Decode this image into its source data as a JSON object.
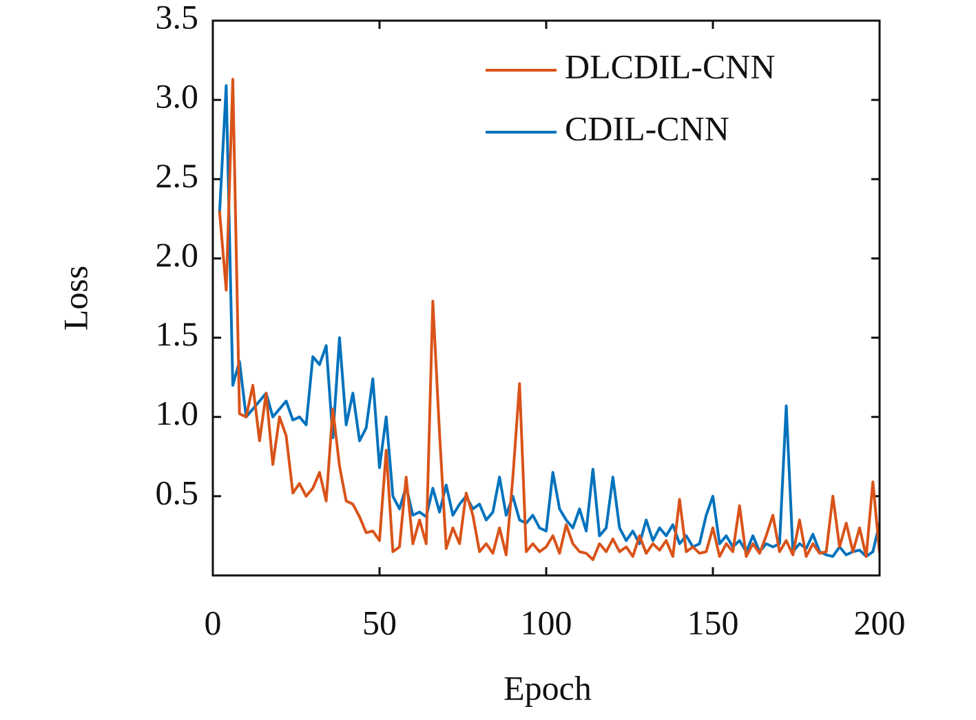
{
  "chart_data": {
    "type": "line",
    "x_label": "Epoch",
    "y_label": "Loss",
    "xlim": [
      0,
      200
    ],
    "xticks": [
      0,
      50,
      100,
      150,
      200
    ],
    "ylim": [
      0,
      3.5
    ],
    "yticks": [
      0.5,
      {
        "value": 1,
        "label": "1.0"
      },
      1.5,
      {
        "value": 2,
        "label": "2.0"
      },
      2.5,
      {
        "value": 3,
        "label": "3.0"
      },
      3.5
    ],
    "legend": "upper right",
    "x": [
      2,
      4,
      6,
      8,
      10,
      12,
      14,
      16,
      18,
      20,
      22,
      24,
      26,
      28,
      30,
      32,
      34,
      36,
      38,
      40,
      42,
      44,
      46,
      48,
      50,
      52,
      54,
      56,
      58,
      60,
      62,
      64,
      66,
      68,
      70,
      72,
      74,
      76,
      78,
      80,
      82,
      84,
      86,
      88,
      90,
      92,
      94,
      96,
      98,
      100,
      102,
      104,
      106,
      108,
      110,
      112,
      114,
      116,
      118,
      120,
      122,
      124,
      126,
      128,
      130,
      132,
      134,
      136,
      138,
      140,
      142,
      144,
      146,
      148,
      150,
      152,
      154,
      156,
      158,
      160,
      162,
      164,
      166,
      168,
      170,
      172,
      174,
      176,
      178,
      180,
      182,
      184,
      186,
      188,
      190,
      192,
      194,
      196,
      198,
      200
    ],
    "series": [
      {
        "name": "DLCDIL-CNN",
        "color": "#d95319",
        "values": [
          2.3,
          1.8,
          3.13,
          1.02,
          1.0,
          1.2,
          0.85,
          1.15,
          0.7,
          1.0,
          0.88,
          0.52,
          0.58,
          0.5,
          0.55,
          0.65,
          0.47,
          1.05,
          0.69,
          0.47,
          0.45,
          0.37,
          0.27,
          0.28,
          0.22,
          0.79,
          0.15,
          0.18,
          0.62,
          0.2,
          0.35,
          0.2,
          1.73,
          0.9,
          0.17,
          0.3,
          0.2,
          0.52,
          0.38,
          0.15,
          0.2,
          0.14,
          0.3,
          0.13,
          0.62,
          1.21,
          0.15,
          0.2,
          0.15,
          0.18,
          0.25,
          0.14,
          0.32,
          0.2,
          0.15,
          0.14,
          0.1,
          0.2,
          0.15,
          0.23,
          0.15,
          0.18,
          0.12,
          0.25,
          0.14,
          0.2,
          0.16,
          0.22,
          0.12,
          0.48,
          0.15,
          0.18,
          0.14,
          0.15,
          0.3,
          0.12,
          0.2,
          0.15,
          0.44,
          0.12,
          0.2,
          0.14,
          0.25,
          0.38,
          0.15,
          0.22,
          0.13,
          0.35,
          0.12,
          0.2,
          0.14,
          0.15,
          0.5,
          0.18,
          0.33,
          0.15,
          0.3,
          0.12,
          0.59,
          0.14
        ]
      },
      {
        "name": "CDIL-CNN",
        "color": "#0072bd",
        "values": [
          2.28,
          3.09,
          1.2,
          1.35,
          1.0,
          1.05,
          1.1,
          1.15,
          1.0,
          1.05,
          1.1,
          0.98,
          1.0,
          0.95,
          1.38,
          1.33,
          1.45,
          0.87,
          1.5,
          0.95,
          1.15,
          0.85,
          0.93,
          1.24,
          0.68,
          1.0,
          0.5,
          0.42,
          0.56,
          0.38,
          0.4,
          0.37,
          0.55,
          0.4,
          0.57,
          0.38,
          0.45,
          0.5,
          0.42,
          0.45,
          0.35,
          0.4,
          0.62,
          0.38,
          0.5,
          0.35,
          0.33,
          0.38,
          0.3,
          0.28,
          0.65,
          0.42,
          0.35,
          0.3,
          0.42,
          0.28,
          0.67,
          0.25,
          0.3,
          0.62,
          0.3,
          0.22,
          0.28,
          0.2,
          0.35,
          0.22,
          0.3,
          0.25,
          0.32,
          0.2,
          0.25,
          0.18,
          0.2,
          0.38,
          0.5,
          0.2,
          0.25,
          0.18,
          0.22,
          0.15,
          0.25,
          0.15,
          0.2,
          0.18,
          0.2,
          1.07,
          0.15,
          0.2,
          0.17,
          0.26,
          0.15,
          0.13,
          0.12,
          0.18,
          0.13,
          0.15,
          0.16,
          0.12,
          0.15,
          0.33
        ]
      }
    ]
  }
}
